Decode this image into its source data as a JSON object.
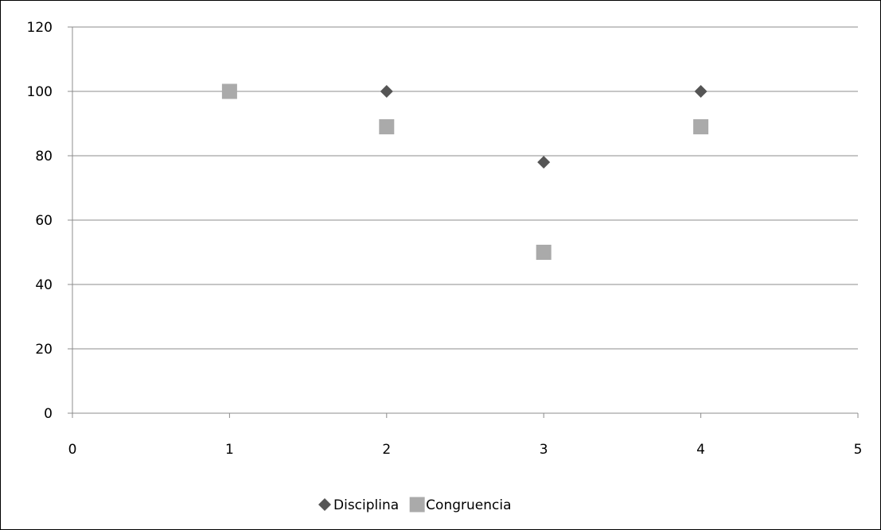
{
  "chart_data": {
    "type": "scatter",
    "title": "",
    "xlabel": "",
    "ylabel": "",
    "xlim": [
      0,
      5
    ],
    "ylim": [
      0,
      120
    ],
    "x_ticks": [
      0,
      1,
      2,
      3,
      4,
      5
    ],
    "y_ticks": [
      0,
      20,
      40,
      60,
      80,
      100,
      120
    ],
    "grid": "horizontal",
    "legend_position": "bottom",
    "series": [
      {
        "name": "Disciplina",
        "marker": "diamond",
        "color": "#555555",
        "points": [
          {
            "x": 1,
            "y": 100
          },
          {
            "x": 2,
            "y": 100
          },
          {
            "x": 3,
            "y": 78
          },
          {
            "x": 4,
            "y": 100
          }
        ]
      },
      {
        "name": "Congruencia",
        "marker": "square",
        "color": "#aaaaaa",
        "points": [
          {
            "x": 1,
            "y": 100
          },
          {
            "x": 2,
            "y": 89
          },
          {
            "x": 3,
            "y": 50
          },
          {
            "x": 4,
            "y": 89
          }
        ]
      }
    ]
  }
}
